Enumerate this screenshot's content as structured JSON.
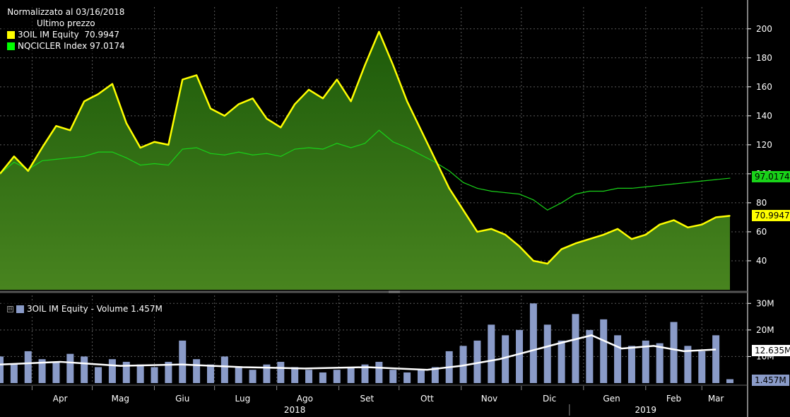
{
  "legend": {
    "title": "Normalizzato al 03/16/2018",
    "subtitle": "Ultimo prezzo",
    "items": [
      {
        "label": "3OIL IM Equity  70.9947",
        "color": "#ffff00"
      },
      {
        "label": "NQCICLER Index 97.0174",
        "color": "#00ff00"
      }
    ]
  },
  "volume_legend": {
    "label": "3OIL IM Equity - Volume 1.457M",
    "color": "#8a9bc8"
  },
  "value_tags": {
    "nqcicler": "97.0174",
    "oil": "70.9947",
    "volume_avg": "12.635M",
    "volume_last": "1.457M"
  },
  "colors": {
    "oil_line": "#ffff00",
    "index_line": "#19d219",
    "fill_top": "#1d5a0a",
    "fill_bottom": "#48841f",
    "volume_bar": "#8a9bc8",
    "volume_avg_line": "#ffffff",
    "grid": "#5a5a5a"
  },
  "chart_data": [
    {
      "type": "area",
      "title": "Normalizzato al 03/16/2018",
      "ylim": [
        20,
        215
      ],
      "yticks": [
        "40",
        "60",
        "80",
        "100",
        "120",
        "140",
        "160",
        "180",
        "200"
      ],
      "x_months": [
        "Apr",
        "Mag",
        "Giu",
        "Lug",
        "Ago",
        "Set",
        "Ott",
        "Nov",
        "Dic",
        "Gen",
        "Feb",
        "Mar"
      ],
      "x_years": [
        "2018",
        "2019"
      ],
      "series": [
        {
          "name": "3OIL IM Equity",
          "x": [
            "2018-03-16",
            "2018-03-23",
            "2018-03-30",
            "2018-04-06",
            "2018-04-13",
            "2018-04-20",
            "2018-04-27",
            "2018-05-04",
            "2018-05-11",
            "2018-05-18",
            "2018-05-25",
            "2018-06-01",
            "2018-06-08",
            "2018-06-15",
            "2018-06-22",
            "2018-06-29",
            "2018-07-06",
            "2018-07-13",
            "2018-07-20",
            "2018-07-27",
            "2018-08-03",
            "2018-08-10",
            "2018-08-17",
            "2018-08-24",
            "2018-08-31",
            "2018-09-07",
            "2018-09-14",
            "2018-09-21",
            "2018-09-28",
            "2018-10-05",
            "2018-10-12",
            "2018-10-19",
            "2018-10-26",
            "2018-11-02",
            "2018-11-09",
            "2018-11-16",
            "2018-11-23",
            "2018-11-30",
            "2018-12-07",
            "2018-12-14",
            "2018-12-21",
            "2018-12-28",
            "2019-01-04",
            "2019-01-11",
            "2019-01-18",
            "2019-01-25",
            "2019-02-01",
            "2019-02-08",
            "2019-02-15",
            "2019-02-22",
            "2019-03-01",
            "2019-03-08",
            "2019-03-15"
          ],
          "values": [
            100,
            112,
            102,
            118,
            133,
            130,
            150,
            155,
            162,
            135,
            118,
            122,
            120,
            165,
            168,
            145,
            140,
            148,
            152,
            138,
            132,
            148,
            158,
            152,
            165,
            150,
            175,
            198,
            175,
            150,
            130,
            110,
            90,
            75,
            60,
            62,
            58,
            50,
            40,
            38,
            48,
            52,
            55,
            58,
            62,
            55,
            58,
            65,
            68,
            63,
            65,
            70,
            71
          ]
        },
        {
          "name": "NQCICLER Index",
          "x": [
            "2018-03-16",
            "2018-03-23",
            "2018-03-30",
            "2018-04-06",
            "2018-04-13",
            "2018-04-20",
            "2018-04-27",
            "2018-05-04",
            "2018-05-11",
            "2018-05-18",
            "2018-05-25",
            "2018-06-01",
            "2018-06-08",
            "2018-06-15",
            "2018-06-22",
            "2018-06-29",
            "2018-07-06",
            "2018-07-13",
            "2018-07-20",
            "2018-07-27",
            "2018-08-03",
            "2018-08-10",
            "2018-08-17",
            "2018-08-24",
            "2018-08-31",
            "2018-09-07",
            "2018-09-14",
            "2018-09-21",
            "2018-09-28",
            "2018-10-05",
            "2018-10-12",
            "2018-10-19",
            "2018-10-26",
            "2018-11-02",
            "2018-11-09",
            "2018-11-16",
            "2018-11-23",
            "2018-11-30",
            "2018-12-07",
            "2018-12-14",
            "2018-12-21",
            "2018-12-28",
            "2019-01-04",
            "2019-01-11",
            "2019-01-18",
            "2019-01-25",
            "2019-02-01",
            "2019-02-08",
            "2019-02-15",
            "2019-02-22",
            "2019-03-01",
            "2019-03-08",
            "2019-03-15"
          ],
          "values": [
            100,
            108,
            103,
            109,
            110,
            111,
            112,
            115,
            115,
            111,
            106,
            107,
            106,
            117,
            118,
            114,
            113,
            115,
            113,
            114,
            112,
            117,
            118,
            117,
            121,
            118,
            121,
            130,
            122,
            118,
            113,
            108,
            102,
            94,
            90,
            88,
            87,
            86,
            82,
            75,
            80,
            86,
            88,
            88,
            90,
            90,
            91,
            92,
            93,
            94,
            95,
            96,
            97
          ]
        }
      ]
    },
    {
      "type": "bar",
      "title": "3OIL IM Equity - Volume 1.457M",
      "ylim": [
        0,
        33
      ],
      "yticks": [
        "10M",
        "20M",
        "30M"
      ],
      "series": [
        {
          "name": "Volume",
          "x": [
            "2018-03-16",
            "2018-03-23",
            "2018-03-30",
            "2018-04-06",
            "2018-04-13",
            "2018-04-20",
            "2018-04-27",
            "2018-05-04",
            "2018-05-11",
            "2018-05-18",
            "2018-05-25",
            "2018-06-01",
            "2018-06-08",
            "2018-06-15",
            "2018-06-22",
            "2018-06-29",
            "2018-07-06",
            "2018-07-13",
            "2018-07-20",
            "2018-07-27",
            "2018-08-03",
            "2018-08-10",
            "2018-08-17",
            "2018-08-24",
            "2018-08-31",
            "2018-09-07",
            "2018-09-14",
            "2018-09-21",
            "2018-09-28",
            "2018-10-05",
            "2018-10-12",
            "2018-10-19",
            "2018-10-26",
            "2018-11-02",
            "2018-11-09",
            "2018-11-16",
            "2018-11-23",
            "2018-11-30",
            "2018-12-07",
            "2018-12-14",
            "2018-12-21",
            "2018-12-28",
            "2019-01-04",
            "2019-01-11",
            "2019-01-18",
            "2019-01-25",
            "2019-02-01",
            "2019-02-08",
            "2019-02-15",
            "2019-02-22",
            "2019-03-01",
            "2019-03-08",
            "2019-03-15"
          ],
          "values": [
            10,
            7,
            12,
            9,
            8,
            11,
            10,
            6,
            9,
            8,
            7,
            6,
            8,
            16,
            9,
            7,
            10,
            6,
            5,
            7,
            8,
            6,
            5,
            4,
            5,
            6,
            7,
            8,
            5,
            4,
            5,
            6,
            12,
            14,
            16,
            22,
            18,
            20,
            30,
            22,
            16,
            26,
            20,
            24,
            18,
            14,
            16,
            15,
            23,
            14,
            12,
            18,
            1.457
          ]
        },
        {
          "name": "Volume average",
          "x": [
            "2018-03-16",
            "2018-04-15",
            "2018-05-15",
            "2018-06-15",
            "2018-07-15",
            "2018-08-15",
            "2018-09-15",
            "2018-10-15",
            "2018-11-01",
            "2018-11-20",
            "2018-12-05",
            "2018-12-20",
            "2019-01-05",
            "2019-01-20",
            "2019-02-05",
            "2019-02-20",
            "2019-03-08"
          ],
          "values": [
            7,
            8,
            6.5,
            7,
            6,
            5.5,
            6,
            5,
            6.5,
            9,
            12,
            15,
            18,
            13,
            14,
            12,
            12.635
          ]
        }
      ]
    }
  ]
}
